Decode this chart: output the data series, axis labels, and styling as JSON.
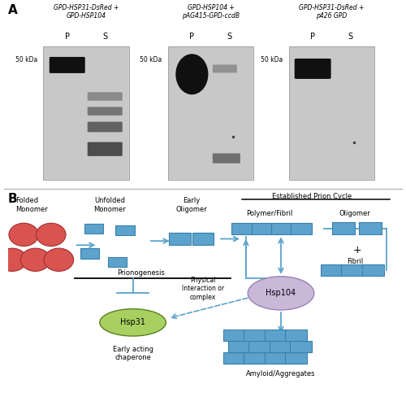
{
  "western_blot_titles": [
    "GPD-HSP31-DsRed +\nGPD-HSP104",
    "GPD-HSP104 +\npAG415-GPD-ccdB",
    "GPD-HSP31-DsRed +\np426 GPD"
  ],
  "blue_color": "#5ba3cc",
  "blue_dark": "#3a80aa",
  "blue_light": "#a8cfe0",
  "red_color": "#d9534f",
  "red_dark": "#a03030",
  "red_light": "#e88080",
  "green_color": "#9dc93f",
  "green_dark": "#5a8020",
  "purple_color": "#c9b8d8",
  "purple_dark": "#9a80b8",
  "bg_color": "#ffffff",
  "blot_bg": "#d0d0d0",
  "blot_bg2": "#c0c0c0",
  "band_dark": "#101010",
  "band_mid": "#404040",
  "band_light": "#707070"
}
